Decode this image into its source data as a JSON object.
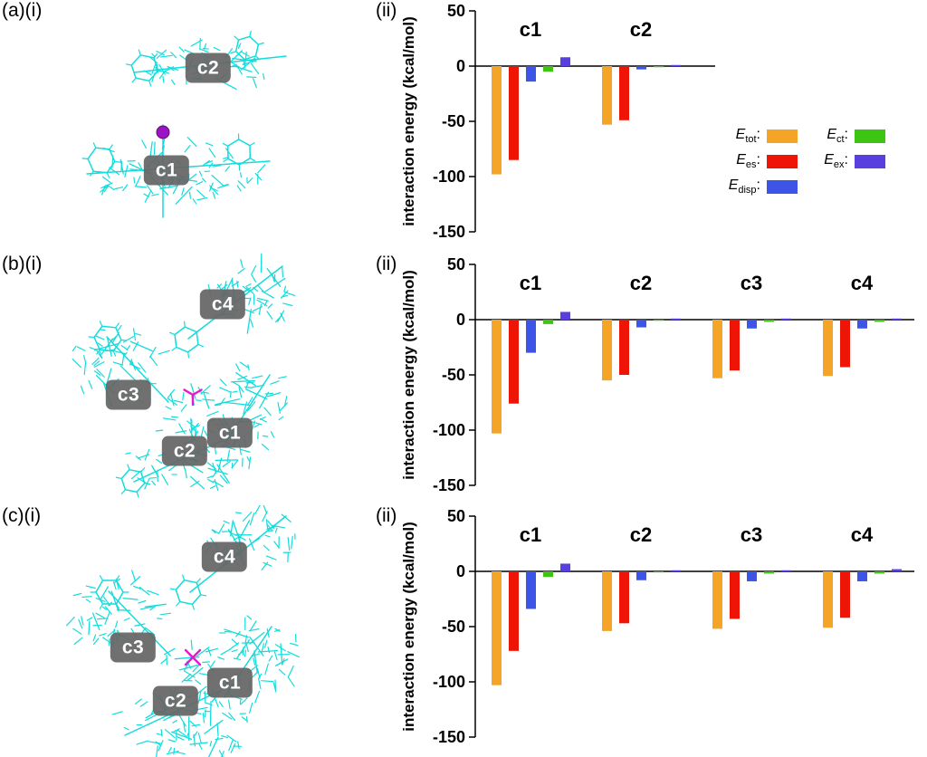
{
  "colors": {
    "etot": "#f4a427",
    "ees": "#ee1507",
    "edisp": "#3d55e6",
    "ect": "#3ec412",
    "eex": "#5a3fe0",
    "molecule": "#13dcdc",
    "heteroatom_a": "#9b13c2",
    "heteroatom_bc": "#e619cf",
    "label_box": "#666666"
  },
  "panels": [
    {
      "left_label": "(a)(i)",
      "chart_label": "(ii)",
      "molecule_labels": [
        "c2",
        "c1"
      ]
    },
    {
      "left_label": "(b)(i)",
      "chart_label": "(ii)",
      "molecule_labels": [
        "c4",
        "c3",
        "c1",
        "c2"
      ]
    },
    {
      "left_label": "(c)(i)",
      "chart_label": "(ii)",
      "molecule_labels": [
        "c4",
        "c3",
        "c1",
        "c2"
      ]
    }
  ],
  "legend": {
    "items": [
      {
        "symbol": "E",
        "sub": "tot",
        "sep": ":",
        "color_key": "etot"
      },
      {
        "symbol": "E",
        "sub": "es",
        "sep": ":",
        "color_key": "ees"
      },
      {
        "symbol": "E",
        "sub": "disp",
        "sep": ":",
        "color_key": "edisp"
      },
      {
        "symbol": "E",
        "sub": "ct",
        "sep": ":",
        "color_key": "ect"
      },
      {
        "symbol": "E",
        "sub": "ex",
        "sep": ":",
        "color_key": "eex"
      }
    ]
  },
  "chart_data": [
    {
      "type": "bar",
      "panel": "a(ii)",
      "categories": [
        "c1",
        "c2"
      ],
      "series": [
        {
          "name": "E_tot",
          "color_key": "etot",
          "values": [
            -98,
            -53
          ]
        },
        {
          "name": "E_es",
          "color_key": "ees",
          "values": [
            -85,
            -49
          ]
        },
        {
          "name": "E_disp",
          "color_key": "edisp",
          "values": [
            -14,
            -3
          ]
        },
        {
          "name": "E_ct",
          "color_key": "ect",
          "values": [
            -5,
            -1
          ]
        },
        {
          "name": "E_ex",
          "color_key": "eex",
          "values": [
            8,
            1
          ]
        }
      ],
      "xlabel": "",
      "ylabel": "interaction energy (kcal/mol)",
      "ylim": [
        -150,
        50
      ],
      "yticks": [
        50,
        0,
        -50,
        -100,
        -150
      ],
      "grid": false,
      "legend_position": "right"
    },
    {
      "type": "bar",
      "panel": "b(ii)",
      "categories": [
        "c1",
        "c2",
        "c3",
        "c4"
      ],
      "series": [
        {
          "name": "E_tot",
          "color_key": "etot",
          "values": [
            -103,
            -55,
            -53,
            -51
          ]
        },
        {
          "name": "E_es",
          "color_key": "ees",
          "values": [
            -76,
            -50,
            -46,
            -43
          ]
        },
        {
          "name": "E_disp",
          "color_key": "edisp",
          "values": [
            -30,
            -7,
            -8,
            -8
          ]
        },
        {
          "name": "E_ct",
          "color_key": "ect",
          "values": [
            -4,
            -1,
            -2,
            -2
          ]
        },
        {
          "name": "E_ex",
          "color_key": "eex",
          "values": [
            7,
            1,
            1,
            1
          ]
        }
      ],
      "xlabel": "",
      "ylabel": "interaction energy (kcal/mol)",
      "ylim": [
        -150,
        50
      ],
      "yticks": [
        50,
        0,
        -50,
        -100,
        -150
      ],
      "grid": false,
      "legend_position": "none"
    },
    {
      "type": "bar",
      "panel": "c(ii)",
      "categories": [
        "c1",
        "c2",
        "c3",
        "c4"
      ],
      "series": [
        {
          "name": "E_tot",
          "color_key": "etot",
          "values": [
            -103,
            -54,
            -52,
            -51
          ]
        },
        {
          "name": "E_es",
          "color_key": "ees",
          "values": [
            -72,
            -47,
            -43,
            -42
          ]
        },
        {
          "name": "E_disp",
          "color_key": "edisp",
          "values": [
            -34,
            -8,
            -9,
            -9
          ]
        },
        {
          "name": "E_ct",
          "color_key": "ect",
          "values": [
            -5,
            -1,
            -2,
            -2
          ]
        },
        {
          "name": "E_ex",
          "color_key": "eex",
          "values": [
            7,
            1,
            1,
            2
          ]
        }
      ],
      "xlabel": "",
      "ylabel": "interaction energy (kcal/mol)",
      "ylim": [
        -150,
        50
      ],
      "yticks": [
        50,
        0,
        -50,
        -100,
        -150
      ],
      "grid": false,
      "legend_position": "none"
    }
  ]
}
